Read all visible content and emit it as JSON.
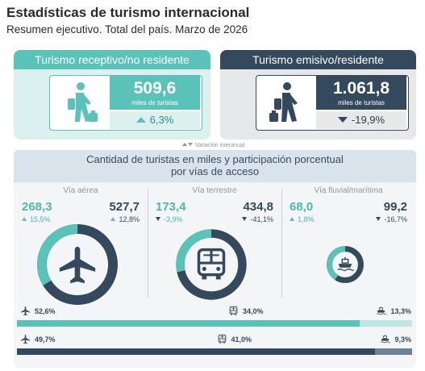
{
  "header": {
    "title": "Estadísticas de turismo internacional",
    "subtitle": "Resumen ejecutivo. Total del país. Marzo de 2026"
  },
  "colors": {
    "receptivo": "#5ac2b8",
    "receptivo_light": "#bfe6e2",
    "emisivo": "#34495e",
    "emisivo_light": "#6e8296"
  },
  "receptivo": {
    "label": "Turismo receptivo/no residente",
    "value": "509,6",
    "unit": "miles de turistas",
    "change": "6,3%",
    "direction": "up",
    "icon": "walking-tourist-icon"
  },
  "emisivo": {
    "label": "Turismo emisivo/residente",
    "value": "1.061,8",
    "unit": "miles de turistas",
    "change": "-19,9%",
    "direction": "down",
    "icon": "walking-tourist-icon"
  },
  "note": "Variación interanual",
  "panel": {
    "title_line1": "Cantidad de turistas en miles y participación porcentual",
    "title_line2": "por vías de acceso"
  },
  "chart_data": {
    "type": "donut",
    "unit": "miles de turistas",
    "categories": [
      "Vía aérea",
      "Vía terrestre",
      "Vía fluvial/marítima"
    ],
    "icons": [
      "airplane-icon",
      "bus-icon",
      "ship-icon"
    ],
    "series": [
      {
        "name": "Turismo receptivo/no residente",
        "values": [
          268.3,
          173.4,
          68.0
        ],
        "labels": [
          "268,3",
          "173,4",
          "68,0"
        ],
        "changes": [
          "15,5%",
          "-3,9%",
          "1,8%"
        ],
        "change_dirs": [
          "up",
          "down",
          "up"
        ],
        "shares": [
          52.6,
          34.0,
          13.3
        ],
        "share_labels": [
          "52,6%",
          "34,0%",
          "13,3%"
        ]
      },
      {
        "name": "Turismo emisivo/residente",
        "values": [
          527.7,
          434.8,
          99.2
        ],
        "labels": [
          "527,7",
          "434,8",
          "99,2"
        ],
        "changes": [
          "12,8%",
          "-41,1%",
          "-16,7%"
        ],
        "change_dirs": [
          "up",
          "down",
          "down"
        ],
        "shares": [
          49.7,
          41.0,
          9.3
        ],
        "share_labels": [
          "49,7%",
          "41,0%",
          "9,3%"
        ]
      }
    ]
  }
}
